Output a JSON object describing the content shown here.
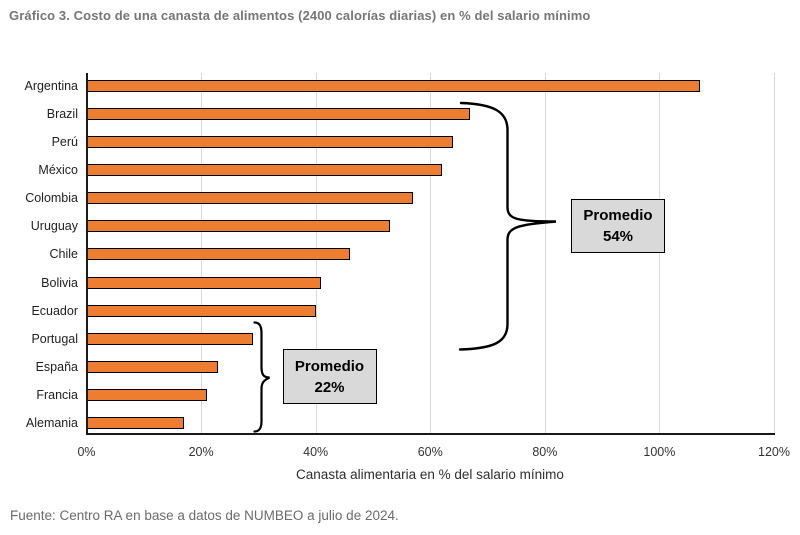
{
  "page": {
    "title": "Gráfico 3. Costo de una canasta de alimentos (2400 calorías diarias) en % del salario mínimo",
    "source": "Fuente: Centro RA en base a datos de NUMBEO a julio de 2024."
  },
  "chart_data": {
    "type": "bar",
    "orientation": "horizontal",
    "title": "Gráfico 3. Costo de una canasta de alimentos (2400 calorías diarias) en % del salario mínimo",
    "xlabel": "Canasta alimentaria en % del salario mínimo",
    "unit": "%",
    "categories": [
      "Argentina",
      "Brazil",
      "Perú",
      "México",
      "Colombia",
      "Uruguay",
      "Chile",
      "Bolivia",
      "Ecuador",
      "Portugal",
      "España",
      "Francia",
      "Alemania"
    ],
    "values": [
      107,
      67,
      64,
      62,
      57,
      53,
      46,
      41,
      40,
      29,
      23,
      21,
      17
    ],
    "xlim": [
      0,
      120
    ],
    "x_ticks": [
      "0%",
      "20%",
      "40%",
      "60%",
      "80%",
      "100%",
      "120%"
    ],
    "grid": "vertical",
    "legend": "none",
    "bar_color": "#ED7D31",
    "bar_border_color": "#000000",
    "gridline_color": "#D9D9D9",
    "annotations": [
      {
        "label": "Promedio",
        "value": "54%",
        "applies_to": [
          "Brazil",
          "Perú",
          "México",
          "Colombia",
          "Uruguay",
          "Chile",
          "Bolivia",
          "Ecuador"
        ]
      },
      {
        "label": "Promedio",
        "value": "22%",
        "applies_to": [
          "Portugal",
          "España",
          "Francia",
          "Alemania"
        ]
      }
    ],
    "source": "Fuente: Centro RA en base a datos de NUMBEO a julio de 2024."
  }
}
